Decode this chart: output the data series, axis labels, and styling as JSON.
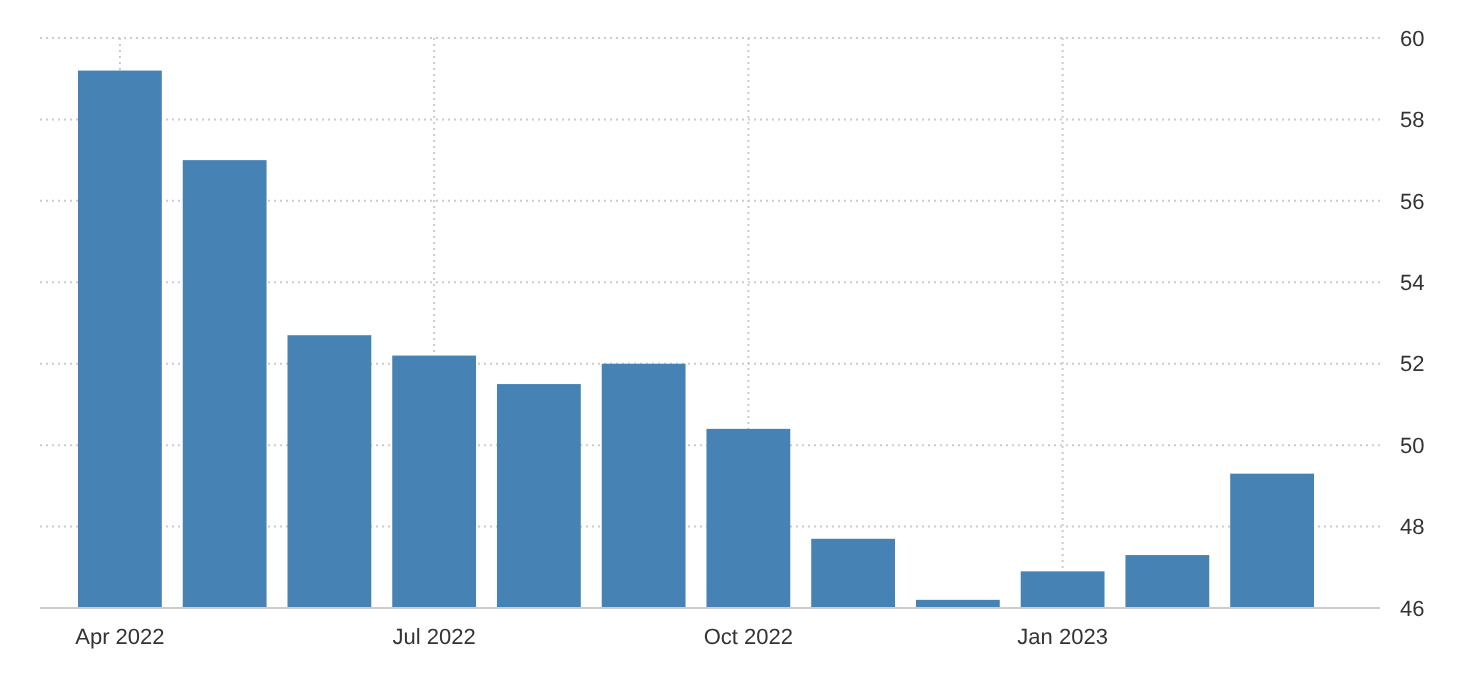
{
  "chart_data": {
    "type": "bar",
    "categories": [
      "Apr 2022",
      null,
      null,
      "Jul 2022",
      null,
      null,
      "Oct 2022",
      null,
      null,
      "Jan 2023",
      null,
      null
    ],
    "values": [
      59.2,
      57.0,
      52.7,
      52.2,
      51.5,
      52.0,
      50.4,
      47.7,
      46.2,
      46.9,
      47.3,
      49.3
    ],
    "color": "#4682b4",
    "ylim": [
      46,
      60
    ],
    "yticks": [
      46,
      48,
      50,
      52,
      54,
      56,
      58,
      60
    ],
    "grid": true
  }
}
